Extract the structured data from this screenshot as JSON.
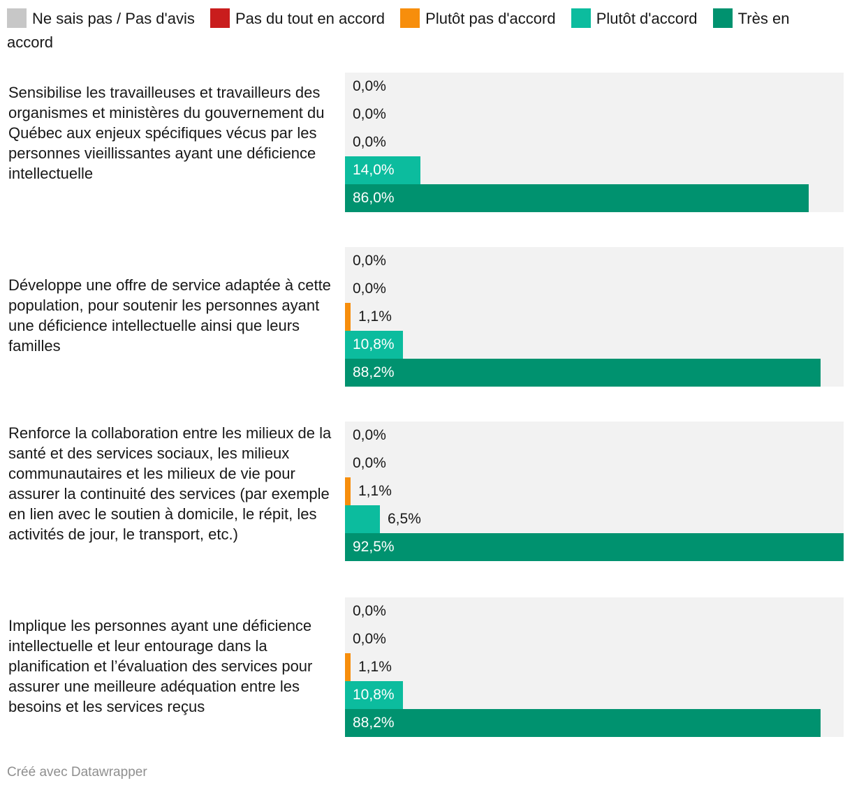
{
  "chart_data": {
    "type": "bar",
    "orientation": "horizontal",
    "value_unit": "%",
    "xlim": [
      0,
      92.5
    ],
    "legend": [
      {
        "name": "Ne sais pas / Pas d'avis",
        "color": "#c7c7c7"
      },
      {
        "name": "Pas du tout en accord",
        "color": "#c91d1d"
      },
      {
        "name": "Plutôt pas d'accord",
        "color": "#f78e0c"
      },
      {
        "name": "Plutôt d'accord",
        "color": "#0cbc9e"
      },
      {
        "name": "Très en accord",
        "color": "#00926f"
      }
    ],
    "groups": [
      {
        "question": "Sensibilise les travailleuses et travailleurs des organismes et ministères du gouvernement du Québec aux enjeux spécifiques vécus par les personnes vieillissantes ayant une déficience intellectuelle",
        "values": [
          0.0,
          0.0,
          0.0,
          14.0,
          86.0
        ],
        "labels": [
          "0,0%",
          "0,0%",
          "0,0%",
          "14,0%",
          "86,0%"
        ]
      },
      {
        "question": "Développe une offre de service adaptée à cette population, pour soutenir les personnes ayant une déficience intellectuelle ainsi que leurs familles",
        "values": [
          0.0,
          0.0,
          1.1,
          10.8,
          88.2
        ],
        "labels": [
          "0,0%",
          "0,0%",
          "1,1%",
          "10,8%",
          "88,2%"
        ]
      },
      {
        "question": "Renforce la collaboration entre les milieux de la santé et des services sociaux, les milieux communautaires et les milieux de vie pour assurer la continuité des services (par exemple en lien avec le soutien à domicile, le répit, les activités de jour, le transport, etc.)",
        "values": [
          0.0,
          0.0,
          1.1,
          6.5,
          92.5
        ],
        "labels": [
          "0,0%",
          "0,0%",
          "1,1%",
          "6,5%",
          "92,5%"
        ]
      },
      {
        "question": "Implique les personnes ayant une déficience intellectuelle et leur entourage dans la planification et l’évaluation des services pour assurer une meilleure adéquation entre les besoins et les services reçus",
        "values": [
          0.0,
          0.0,
          1.1,
          10.8,
          88.2
        ],
        "labels": [
          "0,0%",
          "0,0%",
          "1,1%",
          "10,8%",
          "88,2%"
        ]
      }
    ]
  },
  "footer": "Créé avec Datawrapper"
}
